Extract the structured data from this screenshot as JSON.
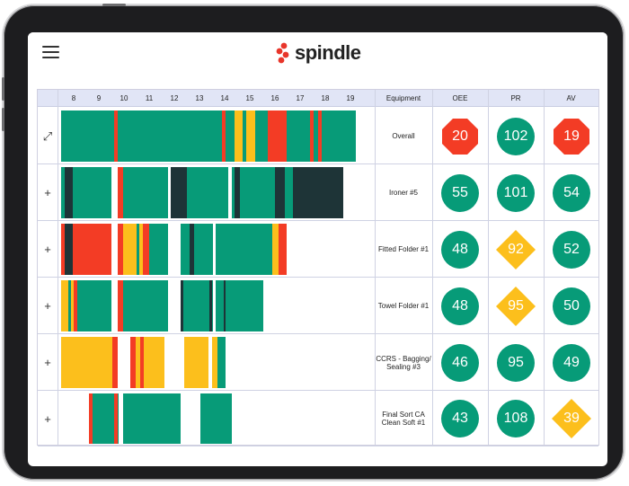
{
  "app": {
    "name": "spindle"
  },
  "colors": {
    "good": "#079b78",
    "warn": "#fcbf1c",
    "bad": "#f33c25",
    "idle": "#1e3437",
    "accent": "#e8352a"
  },
  "header": {
    "hours": [
      "8",
      "9",
      "10",
      "11",
      "12",
      "13",
      "14",
      "15",
      "16",
      "17",
      "18",
      "19"
    ],
    "equipment": "Equipment",
    "oee": "OEE",
    "pr": "PR",
    "av": "AV"
  },
  "rows": [
    {
      "toggle": "⤢",
      "equipment": "Overall",
      "oee": {
        "value": "20",
        "status": "bad"
      },
      "pr": {
        "value": "102",
        "status": "good"
      },
      "av": {
        "value": "19",
        "status": "bad"
      },
      "segments": [
        {
          "start": 8.0,
          "end": 10.1,
          "status": "good"
        },
        {
          "start": 10.1,
          "end": 10.25,
          "status": "bad"
        },
        {
          "start": 10.25,
          "end": 14.4,
          "status": "good"
        },
        {
          "start": 14.4,
          "end": 14.55,
          "status": "bad"
        },
        {
          "start": 14.55,
          "end": 14.9,
          "status": "good"
        },
        {
          "start": 14.9,
          "end": 15.2,
          "status": "warn"
        },
        {
          "start": 15.2,
          "end": 15.35,
          "status": "good"
        },
        {
          "start": 15.35,
          "end": 15.7,
          "status": "warn"
        },
        {
          "start": 15.7,
          "end": 16.2,
          "status": "good"
        },
        {
          "start": 16.2,
          "end": 16.95,
          "status": "bad"
        },
        {
          "start": 16.95,
          "end": 17.9,
          "status": "good"
        },
        {
          "start": 17.9,
          "end": 18.05,
          "status": "bad"
        },
        {
          "start": 18.05,
          "end": 18.2,
          "status": "good"
        },
        {
          "start": 18.2,
          "end": 18.35,
          "status": "bad"
        },
        {
          "start": 18.35,
          "end": 19.7,
          "status": "good"
        }
      ]
    },
    {
      "toggle": "+",
      "equipment": "Ironer #5",
      "oee": {
        "value": "55",
        "status": "good"
      },
      "pr": {
        "value": "101",
        "status": "good"
      },
      "av": {
        "value": "54",
        "status": "good"
      },
      "segments": [
        {
          "start": 8.0,
          "end": 8.15,
          "status": "good"
        },
        {
          "start": 8.15,
          "end": 8.45,
          "status": "idle"
        },
        {
          "start": 8.45,
          "end": 10.0,
          "status": "good"
        },
        {
          "start": 10.25,
          "end": 10.45,
          "status": "bad"
        },
        {
          "start": 10.45,
          "end": 12.25,
          "status": "good"
        },
        {
          "start": 12.35,
          "end": 13.0,
          "status": "idle"
        },
        {
          "start": 13.0,
          "end": 14.65,
          "status": "good"
        },
        {
          "start": 14.8,
          "end": 14.9,
          "status": "good"
        },
        {
          "start": 14.9,
          "end": 15.1,
          "status": "idle"
        },
        {
          "start": 15.1,
          "end": 16.5,
          "status": "good"
        },
        {
          "start": 16.5,
          "end": 16.9,
          "status": "idle"
        },
        {
          "start": 16.9,
          "end": 17.2,
          "status": "good"
        },
        {
          "start": 17.2,
          "end": 19.2,
          "status": "idle"
        }
      ]
    },
    {
      "toggle": "+",
      "equipment": "Fitted Folder #1",
      "oee": {
        "value": "48",
        "status": "good"
      },
      "pr": {
        "value": "92",
        "status": "warn"
      },
      "av": {
        "value": "52",
        "status": "good"
      },
      "segments": [
        {
          "start": 8.0,
          "end": 8.15,
          "status": "bad"
        },
        {
          "start": 8.15,
          "end": 8.45,
          "status": "idle"
        },
        {
          "start": 8.45,
          "end": 10.0,
          "status": "bad"
        },
        {
          "start": 10.25,
          "end": 10.45,
          "status": "bad"
        },
        {
          "start": 10.45,
          "end": 11.0,
          "status": "warn"
        },
        {
          "start": 11.0,
          "end": 11.1,
          "status": "good"
        },
        {
          "start": 11.1,
          "end": 11.25,
          "status": "warn"
        },
        {
          "start": 11.25,
          "end": 11.5,
          "status": "bad"
        },
        {
          "start": 11.5,
          "end": 12.25,
          "status": "good"
        },
        {
          "start": 12.75,
          "end": 13.1,
          "status": "good"
        },
        {
          "start": 13.1,
          "end": 13.3,
          "status": "idle"
        },
        {
          "start": 13.3,
          "end": 14.05,
          "status": "good"
        },
        {
          "start": 14.15,
          "end": 16.4,
          "status": "good"
        },
        {
          "start": 16.4,
          "end": 16.65,
          "status": "warn"
        },
        {
          "start": 16.65,
          "end": 16.95,
          "status": "bad"
        }
      ]
    },
    {
      "toggle": "+",
      "equipment": "Towel Folder #1",
      "oee": {
        "value": "48",
        "status": "good"
      },
      "pr": {
        "value": "95",
        "status": "warn"
      },
      "av": {
        "value": "50",
        "status": "good"
      },
      "segments": [
        {
          "start": 8.0,
          "end": 8.3,
          "status": "warn"
        },
        {
          "start": 8.3,
          "end": 8.4,
          "status": "good"
        },
        {
          "start": 8.4,
          "end": 8.5,
          "status": "warn"
        },
        {
          "start": 8.5,
          "end": 8.65,
          "status": "bad"
        },
        {
          "start": 8.65,
          "end": 10.0,
          "status": "good"
        },
        {
          "start": 10.25,
          "end": 10.45,
          "status": "bad"
        },
        {
          "start": 10.45,
          "end": 12.25,
          "status": "good"
        },
        {
          "start": 12.75,
          "end": 12.85,
          "status": "idle"
        },
        {
          "start": 12.85,
          "end": 13.9,
          "status": "good"
        },
        {
          "start": 13.9,
          "end": 14.0,
          "status": "idle"
        },
        {
          "start": 14.0,
          "end": 14.05,
          "status": "good"
        },
        {
          "start": 14.15,
          "end": 14.45,
          "status": "good"
        },
        {
          "start": 14.45,
          "end": 14.55,
          "status": "idle"
        },
        {
          "start": 14.55,
          "end": 16.05,
          "status": "good"
        }
      ]
    },
    {
      "toggle": "+",
      "equipment": "CCRS - Bagging/ Sealing #3",
      "oee": {
        "value": "46",
        "status": "good"
      },
      "pr": {
        "value": "95",
        "status": "good"
      },
      "av": {
        "value": "49",
        "status": "good"
      },
      "segments": [
        {
          "start": 8.0,
          "end": 10.05,
          "status": "warn"
        },
        {
          "start": 10.05,
          "end": 10.25,
          "status": "bad"
        },
        {
          "start": 10.75,
          "end": 10.95,
          "status": "bad"
        },
        {
          "start": 10.95,
          "end": 11.15,
          "status": "warn"
        },
        {
          "start": 11.15,
          "end": 11.3,
          "status": "bad"
        },
        {
          "start": 11.3,
          "end": 12.1,
          "status": "warn"
        },
        {
          "start": 12.9,
          "end": 13.85,
          "status": "warn"
        },
        {
          "start": 14.0,
          "end": 14.2,
          "status": "warn"
        },
        {
          "start": 14.2,
          "end": 14.55,
          "status": "good"
        }
      ]
    },
    {
      "toggle": "+",
      "equipment": "Final Sort CA Clean Soft #1",
      "oee": {
        "value": "43",
        "status": "good"
      },
      "pr": {
        "value": "108",
        "status": "good"
      },
      "av": {
        "value": "39",
        "status": "warn"
      },
      "segments": [
        {
          "start": 9.1,
          "end": 9.25,
          "status": "bad"
        },
        {
          "start": 9.25,
          "end": 10.1,
          "status": "good"
        },
        {
          "start": 10.1,
          "end": 10.25,
          "status": "bad"
        },
        {
          "start": 10.25,
          "end": 10.3,
          "status": "good"
        },
        {
          "start": 10.45,
          "end": 12.75,
          "status": "good"
        },
        {
          "start": 13.55,
          "end": 14.8,
          "status": "good"
        }
      ]
    }
  ]
}
